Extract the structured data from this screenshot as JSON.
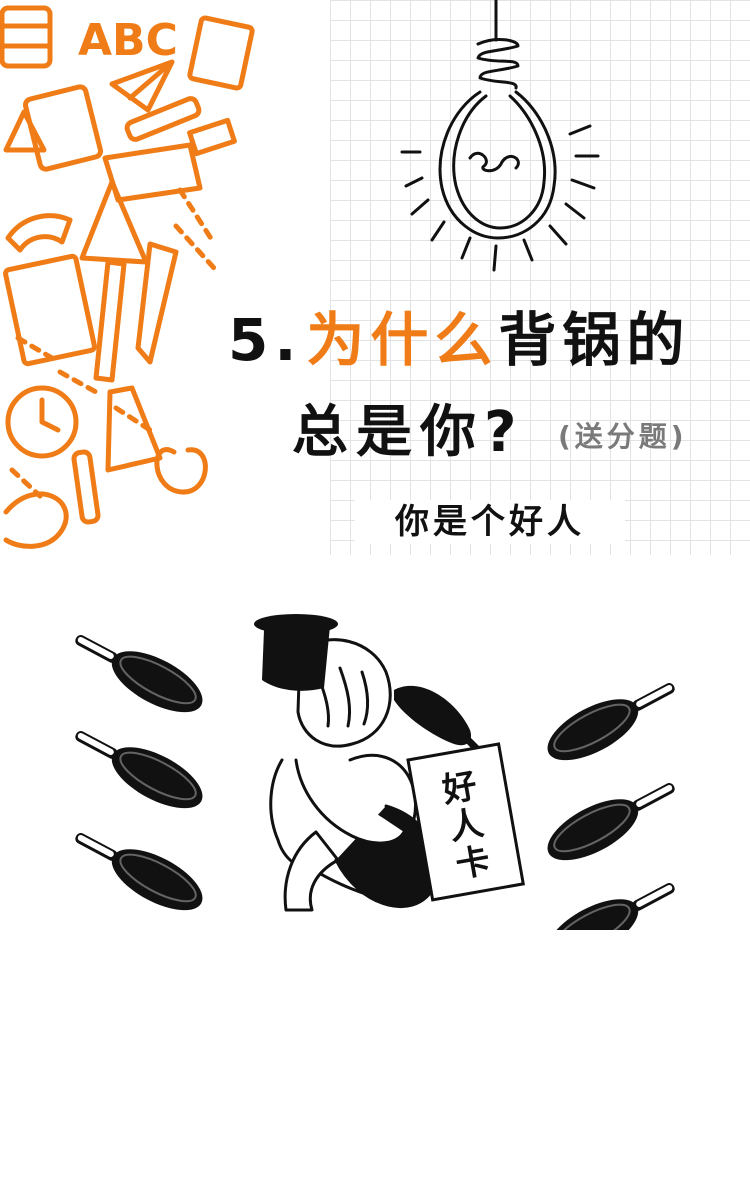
{
  "heading": {
    "number": "5.",
    "highlight": "为什么",
    "rest_line1": "背锅的",
    "line2": "总是你?",
    "badge": "(送分题)"
  },
  "answer": "你是个好人",
  "card_text": "好人卡",
  "doodles": [
    "ABC"
  ],
  "icons": {
    "doodles": "school-supplies-doodle-icons",
    "bulb": "light-bulb-icon",
    "pans": "frying-pan-icon",
    "figure": "sad-person-with-pot-on-head-illustration"
  },
  "colors": {
    "accent": "#f07c17",
    "ink": "#111111",
    "muted": "#7a7a7a"
  }
}
